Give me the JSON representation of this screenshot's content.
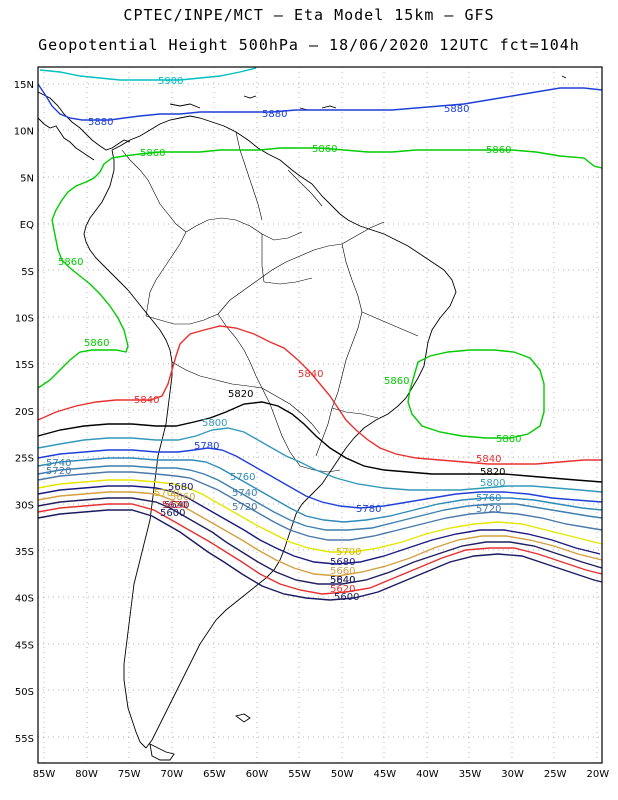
{
  "title": {
    "line1": "CPTEC/INPE/MCT –  Eta Model 15km – GFS",
    "line2": "Geopotential Height 500hPa – 18/06/2020 12UTC fct=104h"
  },
  "axes": {
    "lat_labels": [
      "15N",
      "10N",
      "5N",
      "EQ",
      "5S",
      "10S",
      "15S",
      "20S",
      "25S",
      "30S",
      "35S",
      "40S",
      "45S",
      "50S",
      "55S"
    ],
    "lon_labels": [
      "85W",
      "80W",
      "75W",
      "70W",
      "65W",
      "60W",
      "55W",
      "50W",
      "45W",
      "40W",
      "35W",
      "30W",
      "25W",
      "20W"
    ]
  },
  "colors": {
    "5900": "#00bfbf",
    "5880": "#1f3fd9",
    "5860": "#00cc00",
    "5840": "#e83030",
    "5820": "#000000",
    "5800": "#3399bb",
    "5780": "#1f3fd9",
    "5760": "#2e8ab8",
    "5740": "#3d7fae",
    "5720": "#4a78a8",
    "5700": "#e6e600",
    "5680": "#1a1a80",
    "5660": "#d4a040",
    "5640": "#202060",
    "5620": "#e83030",
    "5600": "#1a1a60"
  },
  "contour_labels": {
    "c5900": "5900",
    "c5880a": "5880",
    "c5880b": "5880",
    "c5880c": "5880",
    "c5860a": "5860",
    "c5860b": "5860",
    "c5860c": "5860",
    "c5860d": "5860",
    "c5860e": "5860",
    "c5860f": "5860",
    "c5860g": "5860",
    "c5840a": "5840",
    "c5840b": "5840",
    "c5840c": "5840",
    "c5840d": "5840",
    "c5820a": "5820",
    "c5820b": "5820",
    "c5800a": "5800",
    "c5800b": "5800",
    "c5780a": "5780",
    "c5780b": "5780",
    "c5760a": "5760",
    "c5760b": "5760",
    "c5740a": "5740",
    "c5740b": "5740",
    "c5720a": "5720",
    "c5720b": "5720",
    "c5720c": "5720",
    "c5700a": "5700",
    "c5700b": "5700",
    "c5680a": "5680",
    "c5680b": "5680",
    "c5660a": "5660",
    "c5660b": "5660",
    "c5640a": "5640",
    "c5640b": "5640",
    "c5620a": "5620",
    "c5620b": "5620",
    "c5600a": "5600",
    "c5600b": "5600"
  }
}
